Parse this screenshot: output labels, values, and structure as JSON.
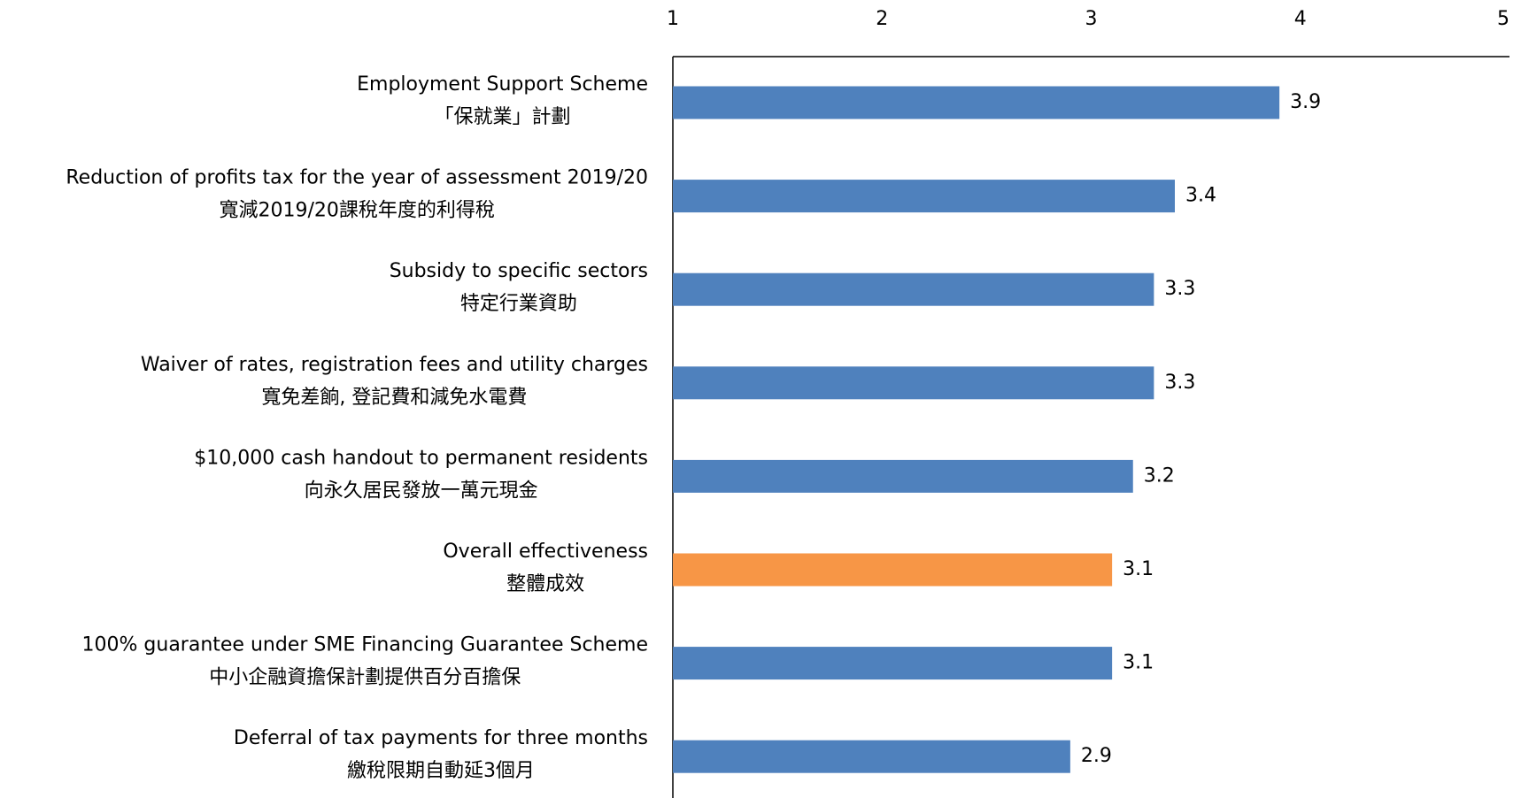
{
  "chart_data": {
    "type": "barh",
    "categories": [
      [
        "Employment Support Scheme",
        "「保就業」計劃"
      ],
      [
        "Reduction of profits tax for the year of assessment 2019/20",
        "寬減2019/20課稅年度的利得稅"
      ],
      [
        "Subsidy to specific sectors",
        "特定行業資助"
      ],
      [
        "Waiver of rates, registration fees and utility charges",
        "寬免差餉, 登記費和減免水電費"
      ],
      [
        "$10,000 cash handout to permanent residents",
        "向永久居民發放一萬元現金"
      ],
      [
        "Overall effectiveness",
        "整體成效"
      ],
      [
        "100% guarantee under SME Financing Guarantee Scheme",
        "中小企融資擔保計劃提供百分百擔保"
      ],
      [
        "Deferral of tax payments for three months",
        "繳稅限期自動延3個月"
      ]
    ],
    "values": [
      3.9,
      3.4,
      3.3,
      3.3,
      3.2,
      3.1,
      3.1,
      2.9
    ],
    "colors": [
      "#4f81bd",
      "#4f81bd",
      "#4f81bd",
      "#4f81bd",
      "#4f81bd",
      "#f79646",
      "#4f81bd",
      "#4f81bd"
    ],
    "xlim": [
      1,
      5
    ],
    "xticks": [
      1,
      2,
      3,
      4,
      5
    ],
    "grid": false
  }
}
